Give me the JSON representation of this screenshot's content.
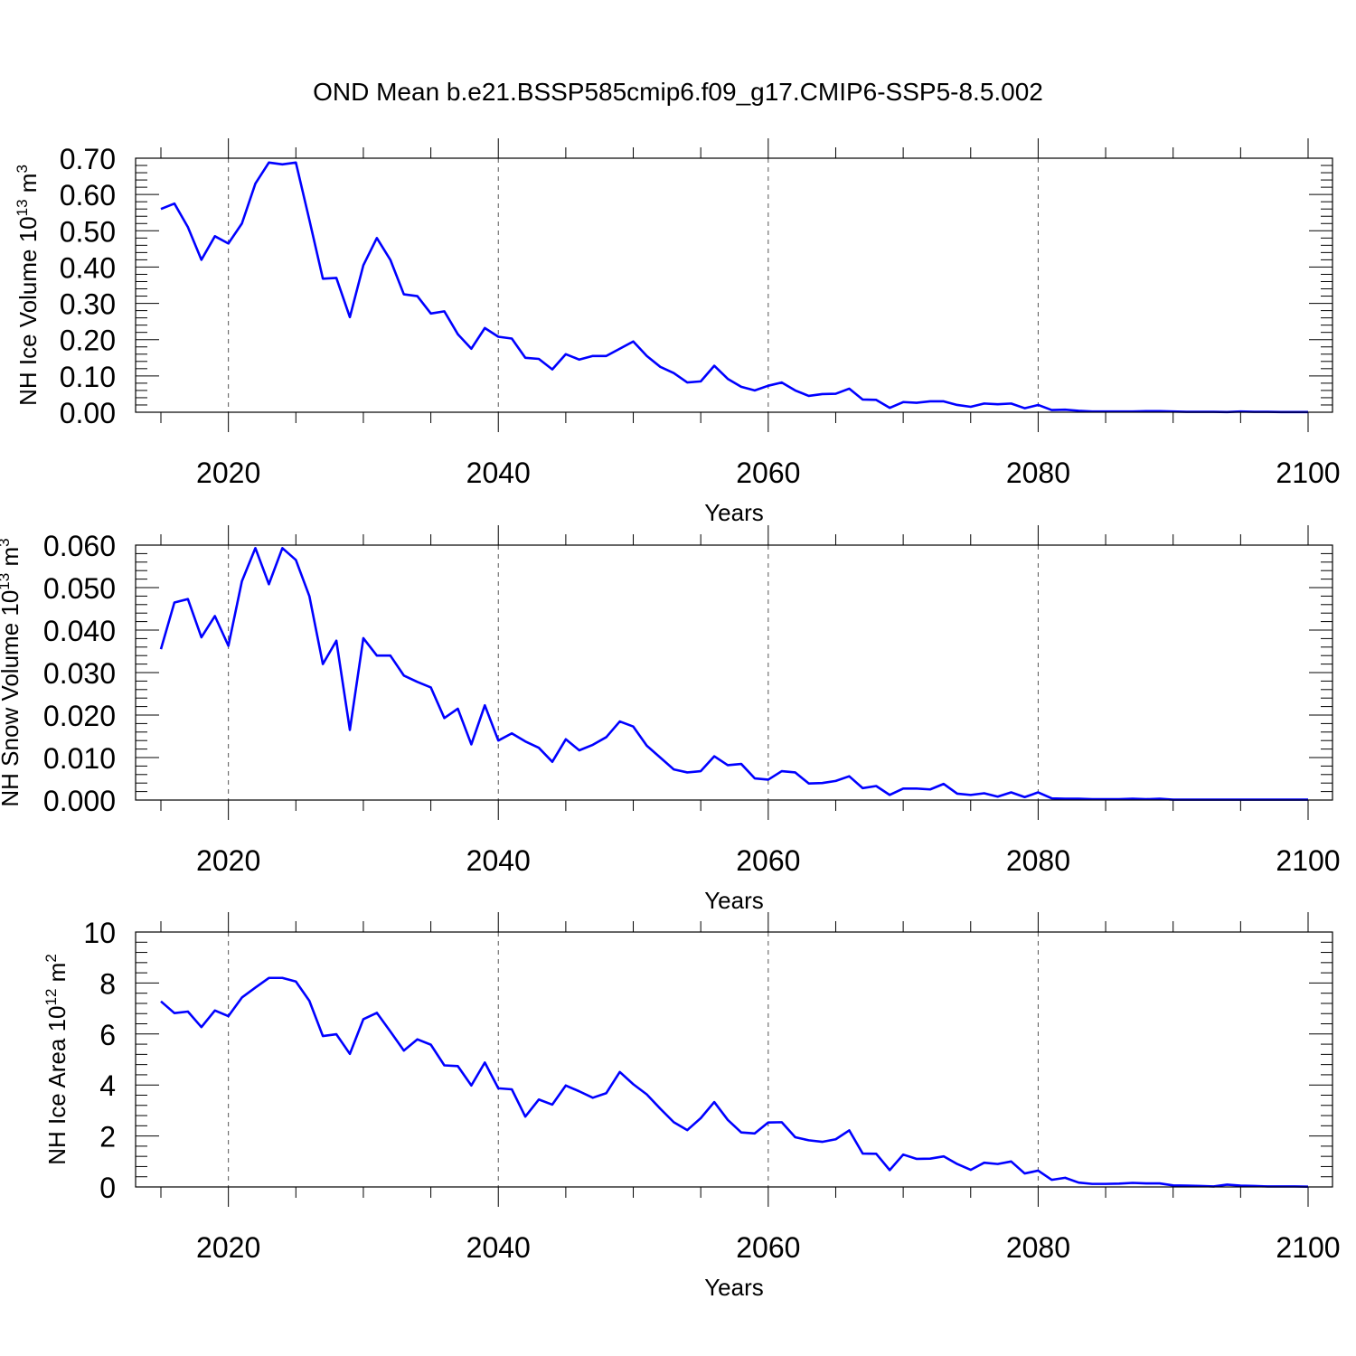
{
  "title": "OND Mean b.e21.BSSP585cmip6.f09_g17.CMIP6-SSP5-8.5.002",
  "colors": {
    "line": "#0000ff",
    "grid": "#555555",
    "axes": "#000000"
  },
  "chart_data": [
    {
      "type": "line",
      "ylabel": {
        "text": "NH Ice Volume 10",
        "exp": "13",
        "unit": "m",
        "unit_exp": "3"
      },
      "xlabel": "Years",
      "xlim": [
        2015,
        2100
      ],
      "ylim": [
        0,
        0.7
      ],
      "xticks": [
        2020,
        2040,
        2060,
        2080,
        2100
      ],
      "xtick_labels": [
        "2020",
        "2040",
        "2060",
        "2080",
        "2100"
      ],
      "yticks": [
        0,
        0.1,
        0.2,
        0.3,
        0.4,
        0.5,
        0.6,
        0.7
      ],
      "ytick_labels": [
        "0.00",
        "0.10",
        "0.20",
        "0.30",
        "0.40",
        "0.50",
        "0.60",
        "0.70"
      ],
      "grid": "vertical dashed at major x ticks",
      "series": [
        {
          "name": "NH Ice Volume",
          "x_start": 2015,
          "values": [
            0.56,
            0.575,
            0.51,
            0.42,
            0.485,
            0.465,
            0.52,
            0.63,
            0.688,
            0.683,
            0.688,
            0.53,
            0.368,
            0.37,
            0.262,
            0.405,
            0.48,
            0.42,
            0.325,
            0.32,
            0.272,
            0.278,
            0.215,
            0.175,
            0.232,
            0.208,
            0.203,
            0.15,
            0.147,
            0.118,
            0.16,
            0.145,
            0.155,
            0.155,
            0.175,
            0.195,
            0.155,
            0.125,
            0.108,
            0.082,
            0.085,
            0.128,
            0.092,
            0.07,
            0.06,
            0.073,
            0.082,
            0.06,
            0.045,
            0.05,
            0.051,
            0.065,
            0.035,
            0.034,
            0.012,
            0.028,
            0.026,
            0.03,
            0.03,
            0.02,
            0.015,
            0.024,
            0.022,
            0.024,
            0.011,
            0.02,
            0.006,
            0.007,
            0.004,
            0.002,
            0.002,
            0.002,
            0.002,
            0.003,
            0.003,
            0.002,
            0.001,
            0.001,
            0.001,
            0.0005,
            0.002,
            0.001,
            0.001,
            0.0005,
            0.0005,
            0.0005
          ]
        }
      ]
    },
    {
      "type": "line",
      "ylabel": {
        "text": "NH Snow Volume 10",
        "exp": "13",
        "unit": "m",
        "unit_exp": "3"
      },
      "xlabel": "Years",
      "xlim": [
        2015,
        2100
      ],
      "ylim": [
        0,
        0.06
      ],
      "xticks": [
        2020,
        2040,
        2060,
        2080,
        2100
      ],
      "xtick_labels": [
        "2020",
        "2040",
        "2060",
        "2080",
        "2100"
      ],
      "yticks": [
        0,
        0.01,
        0.02,
        0.03,
        0.04,
        0.05,
        0.06
      ],
      "ytick_labels": [
        "0.000",
        "0.010",
        "0.020",
        "0.030",
        "0.040",
        "0.050",
        "0.060"
      ],
      "grid": "vertical dashed at major x ticks",
      "series": [
        {
          "name": "NH Snow Volume",
          "x_start": 2015,
          "values": [
            0.0355,
            0.0465,
            0.0473,
            0.0383,
            0.0433,
            0.0363,
            0.0515,
            0.0593,
            0.0508,
            0.0593,
            0.0565,
            0.048,
            0.032,
            0.0375,
            0.0165,
            0.0381,
            0.034,
            0.034,
            0.0293,
            0.0278,
            0.0265,
            0.0193,
            0.0215,
            0.0131,
            0.0223,
            0.014,
            0.0157,
            0.0138,
            0.0123,
            0.009,
            0.0143,
            0.0117,
            0.013,
            0.0148,
            0.0185,
            0.0173,
            0.0128,
            0.01,
            0.0072,
            0.0065,
            0.0068,
            0.0103,
            0.0082,
            0.0085,
            0.0051,
            0.0048,
            0.0068,
            0.0065,
            0.0039,
            0.004,
            0.0045,
            0.0056,
            0.0028,
            0.0033,
            0.0012,
            0.0027,
            0.0027,
            0.0025,
            0.0038,
            0.0015,
            0.0012,
            0.0016,
            0.0008,
            0.0018,
            0.0007,
            0.0018,
            0.0004,
            0.0003,
            0.0003,
            0.0002,
            0.0002,
            0.0002,
            0.0003,
            0.0002,
            0.0003,
            0.0001,
            0.0001,
            0.0001,
            0.0001,
            0.0001,
            0.0001,
            0.0001,
            0.0001,
            0.0001,
            0.0001,
            0.0001
          ]
        }
      ]
    },
    {
      "type": "line",
      "ylabel": {
        "text": "NH Ice Area 10",
        "exp": "12",
        "unit": "m",
        "unit_exp": "2"
      },
      "xlabel": "Years",
      "xlim": [
        2015,
        2100
      ],
      "ylim": [
        0,
        10
      ],
      "xticks": [
        2020,
        2040,
        2060,
        2080,
        2100
      ],
      "xtick_labels": [
        "2020",
        "2040",
        "2060",
        "2080",
        "2100"
      ],
      "yticks": [
        0,
        2,
        4,
        6,
        8,
        10
      ],
      "ytick_labels": [
        "0",
        "2",
        "4",
        "6",
        "8",
        "10"
      ],
      "grid": "vertical dashed at major x ticks",
      "series": [
        {
          "name": "NH Ice Area",
          "x_start": 2015,
          "values": [
            7.28,
            6.82,
            6.88,
            6.27,
            6.92,
            6.7,
            7.43,
            7.82,
            8.2,
            8.2,
            8.06,
            7.3,
            5.92,
            5.99,
            5.22,
            6.58,
            6.83,
            6.1,
            5.35,
            5.79,
            5.58,
            4.77,
            4.74,
            3.98,
            4.88,
            3.87,
            3.83,
            2.76,
            3.43,
            3.23,
            3.98,
            3.75,
            3.5,
            3.68,
            4.51,
            4.03,
            3.63,
            3.07,
            2.54,
            2.23,
            2.7,
            3.33,
            2.63,
            2.14,
            2.1,
            2.53,
            2.54,
            1.95,
            1.83,
            1.77,
            1.87,
            2.22,
            1.31,
            1.3,
            0.66,
            1.27,
            1.1,
            1.11,
            1.2,
            0.9,
            0.67,
            0.95,
            0.9,
            1.0,
            0.53,
            0.64,
            0.28,
            0.36,
            0.17,
            0.12,
            0.12,
            0.13,
            0.16,
            0.14,
            0.14,
            0.06,
            0.05,
            0.04,
            0.02,
            0.09,
            0.05,
            0.04,
            0.02,
            0.02,
            0.02,
            0.01
          ]
        }
      ]
    }
  ]
}
